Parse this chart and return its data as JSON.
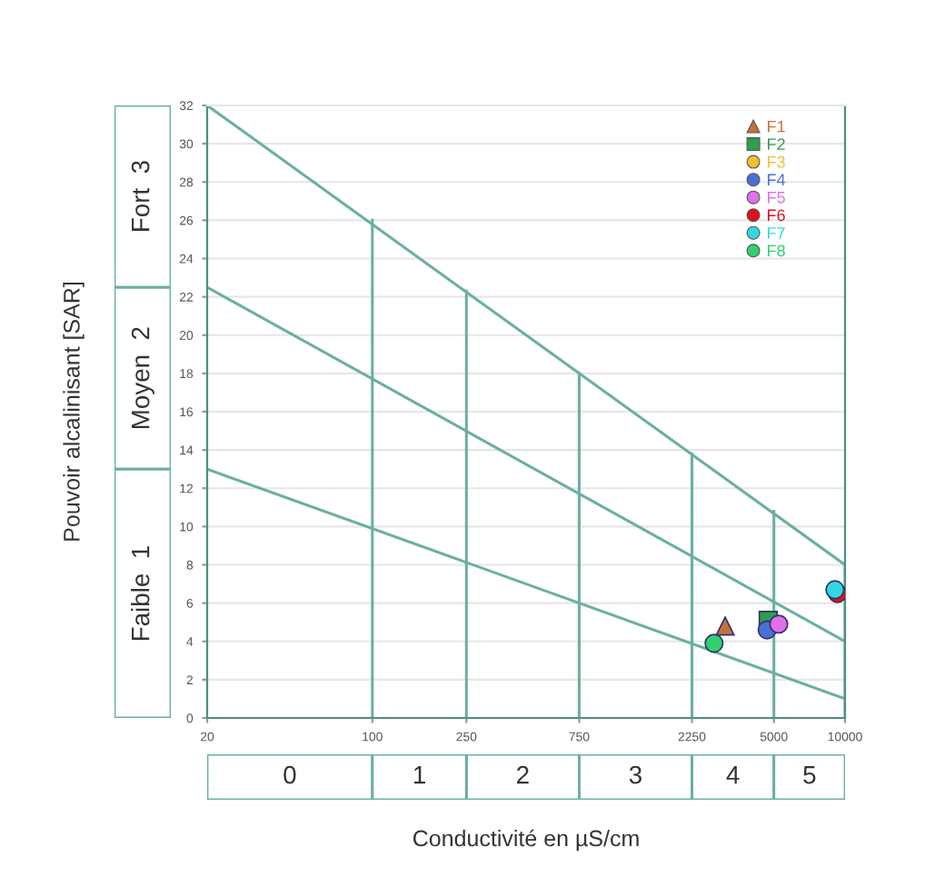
{
  "chart_data": {
    "type": "scatter",
    "xlabel": "Conductivité en µS/cm",
    "ylabel": "Pouvoir alcalinisant [SAR]",
    "log": "x",
    "xlim": [
      20,
      10000
    ],
    "xticks": [
      20,
      100,
      250,
      750,
      2250,
      5000,
      10000
    ],
    "ylim": [
      0,
      32
    ],
    "yticks": [
      0,
      2,
      4,
      6,
      8,
      10,
      12,
      14,
      16,
      18,
      20,
      22,
      24,
      26,
      28,
      30,
      32
    ],
    "grid": "y",
    "legend": "top right",
    "annotations": [
      "0",
      "1",
      "2",
      "3",
      "4",
      "5",
      "Faible  1",
      "Moyen  2",
      "Fort  3"
    ],
    "series": [
      {
        "type": "line",
        "color": "#6aafa2",
        "x": [
          20,
          10000
        ],
        "values": [
          32,
          8
        ]
      },
      {
        "type": "line",
        "color": "#6aafa2",
        "x": [
          20,
          10000
        ],
        "values": [
          22.5,
          4
        ]
      },
      {
        "type": "line",
        "color": "#6aafa2",
        "x": [
          20,
          10000
        ],
        "values": [
          13,
          1
        ]
      },
      {
        "type": "line",
        "color": "#6aafa2",
        "x": [
          100,
          100
        ],
        "values": [
          0,
          26
        ]
      },
      {
        "type": "line",
        "color": "#6aafa2",
        "x": [
          250,
          250
        ],
        "values": [
          0,
          22.3
        ]
      },
      {
        "type": "line",
        "color": "#6aafa2",
        "x": [
          750,
          750
        ],
        "values": [
          0,
          18
        ]
      },
      {
        "type": "line",
        "color": "#6aafa2",
        "x": [
          2250,
          2250
        ],
        "values": [
          0,
          13.8
        ]
      },
      {
        "type": "line",
        "color": "#6aafa2",
        "x": [
          5000,
          5000
        ],
        "values": [
          0,
          10.8
        ]
      },
      {
        "type": "line",
        "color": "#6aafa2",
        "x": [
          10000,
          10000
        ],
        "values": [
          0,
          8
        ]
      },
      {
        "name": "F1",
        "color": "#c8703a",
        "marker": "triangle",
        "x": [
          3110
        ],
        "values": [
          4.8
        ]
      },
      {
        "name": "F2",
        "color": "#2e9e4f",
        "marker": "square",
        "x": [
          4730
        ],
        "values": [
          5.1
        ]
      },
      {
        "name": "F3",
        "color": "#f0c030",
        "marker": "circle",
        "x": [
          null
        ],
        "values": [
          null
        ]
      },
      {
        "name": "F4",
        "color": "#4a6fd6",
        "marker": "circle",
        "x": [
          4680
        ],
        "values": [
          4.6
        ]
      },
      {
        "name": "F5",
        "color": "#e070e8",
        "marker": "circle",
        "x": [
          5240
        ],
        "values": [
          4.9
        ]
      },
      {
        "name": "F6",
        "color": "#e0101a",
        "marker": "circle",
        "x": [
          9290
        ],
        "values": [
          6.5
        ]
      },
      {
        "name": "F7",
        "color": "#30d8e0",
        "marker": "circle",
        "x": [
          9060
        ],
        "values": [
          6.7
        ]
      },
      {
        "name": "F8",
        "color": "#30d070",
        "marker": "circle",
        "x": [
          2790
        ],
        "values": [
          3.9
        ]
      }
    ]
  }
}
